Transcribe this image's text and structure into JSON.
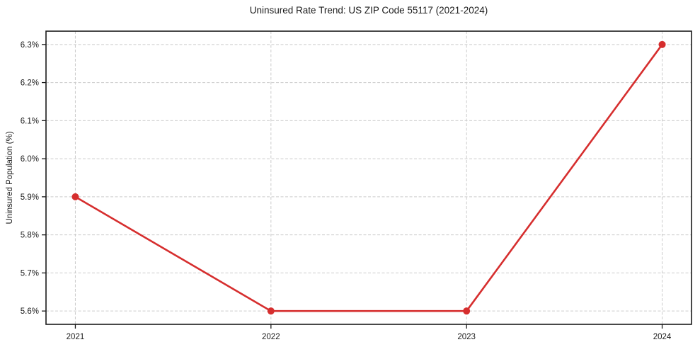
{
  "chart_data": {
    "type": "line",
    "title": "Uninsured Rate Trend: US ZIP Code 55117 (2021-2024)",
    "xlabel": "",
    "ylabel": "Uninsured Population (%)",
    "x": [
      2021,
      2022,
      2023,
      2024
    ],
    "y": [
      5.9,
      5.6,
      5.6,
      6.3
    ],
    "x_tick_labels": [
      "2021",
      "2022",
      "2023",
      "2024"
    ],
    "y_tick_values": [
      5.6,
      5.7,
      5.8,
      5.9,
      6.0,
      6.1,
      6.2,
      6.3
    ],
    "y_tick_labels": [
      "5.6%",
      "5.7%",
      "5.8%",
      "5.9%",
      "6.0%",
      "6.1%",
      "6.2%",
      "6.3%"
    ],
    "xlim": [
      2020.85,
      2024.15
    ],
    "ylim": [
      5.565,
      6.335
    ],
    "grid": true,
    "grid_style": "dashed",
    "legend": false,
    "colors": {
      "line": "#d62e2e",
      "marker": "#d62e2e",
      "grid": "#cccccc",
      "axis": "#1b1b1b",
      "text": "#1b1b1b",
      "background": "#ffffff"
    }
  }
}
